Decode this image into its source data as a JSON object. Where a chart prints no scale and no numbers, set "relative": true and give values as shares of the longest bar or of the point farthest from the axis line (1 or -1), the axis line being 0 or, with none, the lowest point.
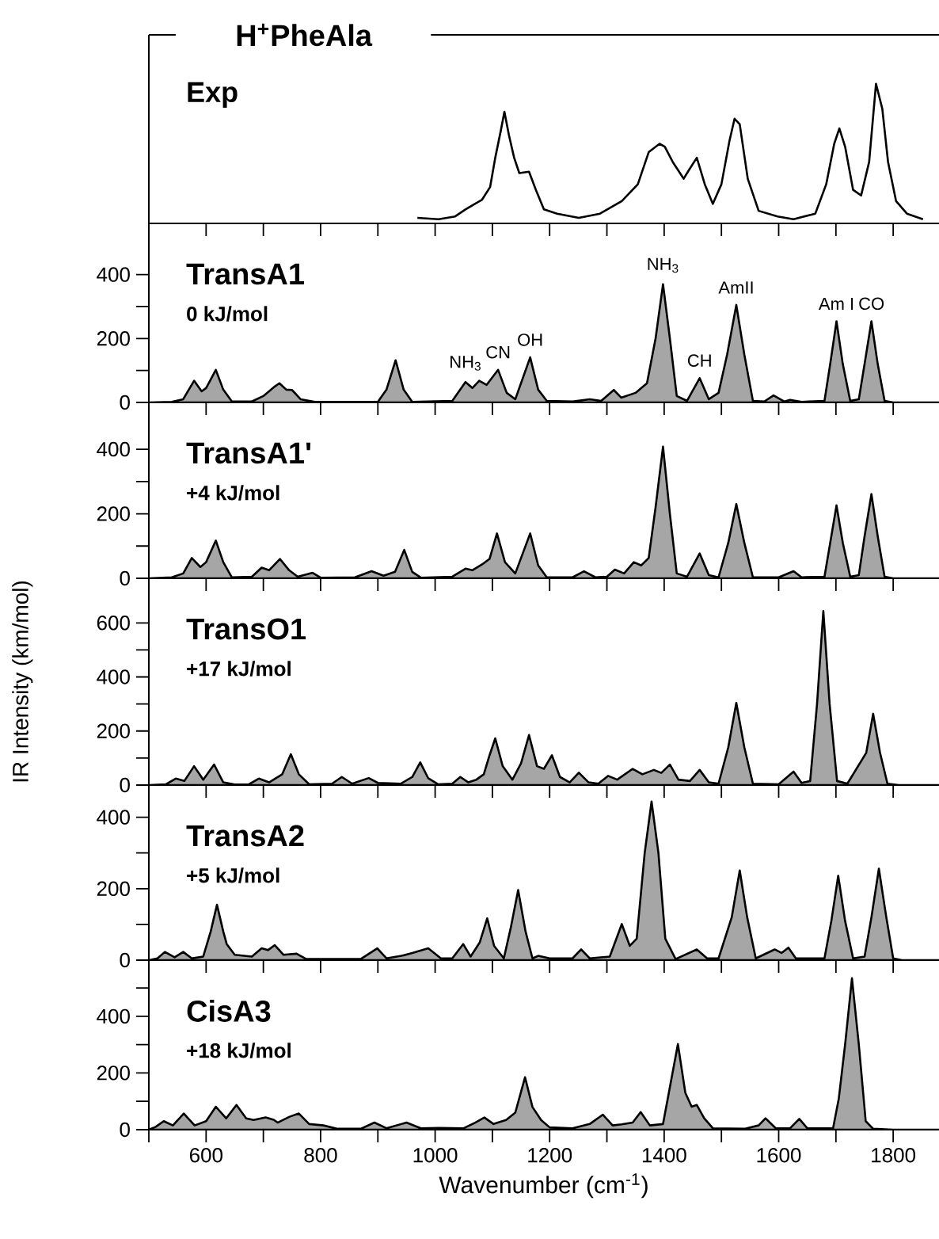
{
  "chart_data": [
    {
      "type": "line",
      "title": "H$^{+}$PheAla",
      "subtitle": "Exp",
      "relative": true,
      "color": "#000000",
      "xlim": [
        500,
        1880
      ],
      "tick_labels": false,
      "xticks": [
        {
          "value": 500,
          "label": null
        },
        {
          "value": 600,
          "label": null
        },
        {
          "value": 700,
          "label": null
        },
        {
          "value": 800,
          "label": null
        },
        {
          "value": 900,
          "label": null
        },
        {
          "value": 1000,
          "label": null
        },
        {
          "value": 1100,
          "label": null
        },
        {
          "value": 1200,
          "label": null
        },
        {
          "value": 1300,
          "label": null
        },
        {
          "value": 1400,
          "label": null
        },
        {
          "value": 1500,
          "label": null
        },
        {
          "value": 1600,
          "label": null
        },
        {
          "value": 1700,
          "label": null
        },
        {
          "value": 1800,
          "label": null
        }
      ],
      "x": [
        969,
        1006,
        1035,
        1053,
        1082,
        1096,
        1105,
        1115,
        1121,
        1129,
        1138,
        1147,
        1164,
        1176,
        1190,
        1213,
        1251,
        1288,
        1326,
        1354,
        1373,
        1392,
        1401,
        1415,
        1434,
        1443,
        1457,
        1471,
        1485,
        1500,
        1514,
        1523,
        1532,
        1546,
        1565,
        1598,
        1626,
        1664,
        1683,
        1697,
        1706,
        1716,
        1730,
        1744,
        1758,
        1770,
        1781,
        1791,
        1805,
        1824,
        1852
      ],
      "values": [
        0.04,
        0.03,
        0.05,
        0.1,
        0.17,
        0.26,
        0.47,
        0.67,
        0.8,
        0.63,
        0.47,
        0.36,
        0.37,
        0.24,
        0.1,
        0.07,
        0.04,
        0.07,
        0.16,
        0.28,
        0.51,
        0.57,
        0.55,
        0.44,
        0.32,
        0.38,
        0.47,
        0.28,
        0.14,
        0.28,
        0.59,
        0.75,
        0.71,
        0.32,
        0.09,
        0.05,
        0.03,
        0.07,
        0.28,
        0.57,
        0.68,
        0.55,
        0.24,
        0.2,
        0.44,
        1,
        0.82,
        0.44,
        0.16,
        0.07,
        0.03
      ]
    },
    {
      "type": "area",
      "title": "TransA1",
      "subtitle": "0 kJ/mol",
      "color": "#000000",
      "xlim": [
        500,
        1880
      ],
      "ylim": [
        0,
        560
      ],
      "tick_labels": "y",
      "xticks": [
        {
          "value": 500,
          "label": null
        },
        600,
        {
          "value": 700,
          "label": null
        },
        800,
        {
          "value": 900,
          "label": null
        },
        1000,
        {
          "value": 1100,
          "label": null
        },
        1200,
        {
          "value": 1300,
          "label": null
        },
        1400,
        {
          "value": 1500,
          "label": null
        },
        1600,
        {
          "value": 1700,
          "label": null
        },
        1800
      ],
      "yticks": [
        0,
        {
          "value": 100,
          "label": null
        },
        200,
        {
          "value": 300,
          "label": null
        },
        400
      ],
      "annotations": [
        {
          "text": "NH$_{3}$",
          "x": 1053,
          "y": 64
        },
        {
          "text": "CN",
          "x": 1110,
          "y": 102
        },
        {
          "text": "OH",
          "x": 1166,
          "y": 141
        },
        {
          "text": "NH$_{3}$",
          "x": 1398,
          "y": 370
        },
        {
          "text": "CH",
          "x": 1462,
          "y": 76
        },
        {
          "text": "AmII",
          "x": 1526,
          "y": 305
        },
        {
          "text": "Am I",
          "x": 1701,
          "y": 254
        },
        {
          "text": "CO",
          "x": 1762,
          "y": 254
        }
      ],
      "x": [
        500,
        540,
        560,
        579,
        592,
        600,
        617,
        630,
        645,
        680,
        700,
        720,
        728,
        740,
        750,
        765,
        790,
        900,
        915,
        931,
        945,
        960,
        1030,
        1053,
        1065,
        1077,
        1090,
        1110,
        1125,
        1140,
        1166,
        1180,
        1195,
        1240,
        1270,
        1290,
        1312,
        1325,
        1350,
        1370,
        1385,
        1398,
        1410,
        1422,
        1440,
        1462,
        1478,
        1495,
        1510,
        1526,
        1540,
        1555,
        1575,
        1591,
        1610,
        1620,
        1640,
        1680,
        1690,
        1701,
        1712,
        1725,
        1740,
        1750,
        1762,
        1773,
        1785,
        1800,
        1880
      ],
      "values": [
        0,
        2,
        10,
        68,
        35,
        45,
        102,
        40,
        3,
        3,
        20,
        50,
        60,
        40,
        39,
        10,
        2,
        2,
        40,
        132,
        40,
        2,
        5,
        64,
        45,
        68,
        55,
        102,
        30,
        10,
        141,
        40,
        5,
        3,
        10,
        5,
        39,
        15,
        30,
        60,
        200,
        370,
        200,
        20,
        5,
        76,
        10,
        30,
        150,
        305,
        150,
        5,
        3,
        22,
        3,
        8,
        2,
        5,
        120,
        254,
        120,
        5,
        10,
        120,
        254,
        120,
        5,
        0,
        0
      ]
    },
    {
      "type": "area",
      "title": "TransA1'",
      "subtitle": "+4 kJ/mol",
      "color": "#000000",
      "xlim": [
        500,
        1880
      ],
      "ylim": [
        0,
        545
      ],
      "tick_labels": "y",
      "xticks": [
        {
          "value": 500,
          "label": null
        },
        600,
        {
          "value": 700,
          "label": null
        },
        800,
        {
          "value": 900,
          "label": null
        },
        1000,
        {
          "value": 1100,
          "label": null
        },
        1200,
        {
          "value": 1300,
          "label": null
        },
        1400,
        {
          "value": 1500,
          "label": null
        },
        1600,
        {
          "value": 1700,
          "label": null
        },
        1800
      ],
      "yticks": [
        0,
        {
          "value": 100,
          "label": null
        },
        200,
        {
          "value": 300,
          "label": null
        },
        400
      ],
      "x": [
        500,
        540,
        560,
        575,
        590,
        600,
        617,
        630,
        645,
        680,
        697,
        710,
        729,
        745,
        760,
        786,
        800,
        860,
        889,
        910,
        930,
        946,
        960,
        975,
        1030,
        1053,
        1065,
        1082,
        1095,
        1108,
        1122,
        1140,
        1166,
        1180,
        1195,
        1240,
        1260,
        1280,
        1300,
        1314,
        1330,
        1347,
        1360,
        1373,
        1385,
        1398,
        1410,
        1422,
        1440,
        1462,
        1478,
        1495,
        1512,
        1526,
        1540,
        1555,
        1600,
        1626,
        1640,
        1680,
        1690,
        1701,
        1712,
        1725,
        1740,
        1750,
        1762,
        1773,
        1785,
        1800,
        1880
      ],
      "values": [
        0,
        3,
        15,
        63,
        35,
        50,
        117,
        50,
        3,
        5,
        33,
        25,
        60,
        25,
        5,
        17,
        2,
        3,
        22,
        8,
        20,
        88,
        20,
        2,
        5,
        30,
        25,
        43,
        60,
        139,
        50,
        15,
        139,
        40,
        3,
        3,
        22,
        3,
        5,
        27,
        15,
        50,
        40,
        63,
        220,
        408,
        200,
        15,
        5,
        77,
        10,
        3,
        110,
        230,
        110,
        3,
        3,
        22,
        3,
        5,
        110,
        226,
        110,
        5,
        10,
        130,
        261,
        130,
        5,
        0,
        0
      ]
    },
    {
      "type": "area",
      "title": "TransO1",
      "subtitle": "+17 kJ/mol",
      "ylabel": "IR Intensity (km/mol)",
      "color": "#000000",
      "xlim": [
        500,
        1880
      ],
      "ylim": [
        0,
        765
      ],
      "tick_labels": "y",
      "xticks": [
        {
          "value": 500,
          "label": null
        },
        600,
        {
          "value": 700,
          "label": null
        },
        800,
        {
          "value": 900,
          "label": null
        },
        1000,
        {
          "value": 1100,
          "label": null
        },
        1200,
        {
          "value": 1300,
          "label": null
        },
        1400,
        {
          "value": 1500,
          "label": null
        },
        1600,
        {
          "value": 1700,
          "label": null
        },
        1800
      ],
      "yticks": [
        0,
        {
          "value": 100,
          "label": null
        },
        200,
        {
          "value": 300,
          "label": null
        },
        400,
        {
          "value": 500,
          "label": null
        },
        600
      ],
      "x": [
        500,
        530,
        547,
        562,
        579,
        595,
        614,
        630,
        650,
        675,
        692,
        710,
        733,
        748,
        762,
        780,
        820,
        837,
        855,
        884,
        900,
        940,
        960,
        974,
        988,
        1005,
        1030,
        1044,
        1058,
        1072,
        1085,
        1095,
        1105,
        1118,
        1135,
        1150,
        1164,
        1178,
        1190,
        1204,
        1218,
        1235,
        1251,
        1268,
        1285,
        1302,
        1318,
        1345,
        1362,
        1382,
        1395,
        1410,
        1425,
        1445,
        1462,
        1478,
        1495,
        1512,
        1526,
        1540,
        1555,
        1600,
        1626,
        1640,
        1655,
        1667,
        1678,
        1689,
        1702,
        1720,
        1753,
        1765,
        1777,
        1790,
        1810,
        1880
      ],
      "values": [
        0,
        3,
        24,
        15,
        70,
        20,
        76,
        10,
        2,
        3,
        24,
        10,
        40,
        114,
        40,
        3,
        5,
        30,
        5,
        26,
        8,
        5,
        30,
        84,
        25,
        3,
        5,
        30,
        10,
        20,
        40,
        110,
        173,
        70,
        20,
        80,
        185,
        70,
        60,
        110,
        30,
        10,
        46,
        10,
        5,
        34,
        20,
        60,
        40,
        56,
        45,
        76,
        20,
        15,
        56,
        10,
        5,
        140,
        304,
        140,
        5,
        3,
        50,
        8,
        15,
        300,
        644,
        300,
        15,
        5,
        120,
        264,
        120,
        5,
        0,
        0
      ]
    },
    {
      "type": "area",
      "title": "TransA2",
      "subtitle": "+5 kJ/mol",
      "color": "#000000",
      "xlim": [
        500,
        1880
      ],
      "ylim": [
        0,
        490
      ],
      "tick_labels": "y",
      "xticks": [
        {
          "value": 500,
          "label": null
        },
        600,
        {
          "value": 700,
          "label": null
        },
        800,
        {
          "value": 900,
          "label": null
        },
        1000,
        {
          "value": 1100,
          "label": null
        },
        1200,
        {
          "value": 1300,
          "label": null
        },
        1400,
        {
          "value": 1500,
          "label": null
        },
        1600,
        {
          "value": 1700,
          "label": null
        },
        1800
      ],
      "yticks": [
        0,
        {
          "value": 100,
          "label": null
        },
        200,
        {
          "value": 300,
          "label": null
        },
        400
      ],
      "x": [
        500,
        515,
        528,
        545,
        560,
        575,
        595,
        608,
        619,
        630,
        636,
        650,
        680,
        697,
        708,
        720,
        735,
        758,
        775,
        870,
        899,
        915,
        941,
        960,
        988,
        1010,
        1030,
        1049,
        1062,
        1078,
        1091,
        1103,
        1120,
        1132,
        1145,
        1158,
        1170,
        1180,
        1200,
        1240,
        1255,
        1270,
        1305,
        1326,
        1340,
        1352,
        1366,
        1378,
        1390,
        1402,
        1420,
        1457,
        1475,
        1495,
        1518,
        1532,
        1545,
        1560,
        1593,
        1605,
        1617,
        1630,
        1680,
        1692,
        1704,
        1716,
        1730,
        1750,
        1762,
        1775,
        1788,
        1800,
        1815,
        1880
      ],
      "values": [
        0,
        5,
        23,
        8,
        23,
        5,
        10,
        80,
        155,
        80,
        45,
        15,
        10,
        33,
        28,
        42,
        15,
        18,
        3,
        3,
        33,
        5,
        12,
        20,
        33,
        5,
        5,
        45,
        10,
        50,
        117,
        40,
        5,
        90,
        196,
        80,
        5,
        12,
        5,
        5,
        30,
        5,
        10,
        101,
        40,
        60,
        300,
        444,
        300,
        60,
        3,
        30,
        5,
        5,
        120,
        251,
        120,
        5,
        30,
        20,
        35,
        5,
        5,
        110,
        236,
        110,
        5,
        10,
        120,
        256,
        120,
        5,
        0,
        0
      ]
    },
    {
      "type": "area",
      "title": "CisA3",
      "subtitle": "+18 kJ/mol",
      "xlabel": "Wavenumber (cm$^{-1}$)",
      "color": "#000000",
      "xlim": [
        500,
        1880
      ],
      "ylim": [
        0,
        598
      ],
      "xticks": [
        {
          "value": 500,
          "label": null
        },
        600,
        {
          "value": 700,
          "label": null
        },
        800,
        {
          "value": 900,
          "label": null
        },
        1000,
        {
          "value": 1100,
          "label": null
        },
        1200,
        {
          "value": 1300,
          "label": null
        },
        1400,
        {
          "value": 1500,
          "label": null
        },
        1600,
        {
          "value": 1700,
          "label": null
        },
        1800
      ],
      "yticks": [
        0,
        {
          "value": 100,
          "label": null
        },
        200,
        {
          "value": 300,
          "label": null
        },
        400,
        {
          "value": 500,
          "label": null
        }
      ],
      "x": [
        500,
        512,
        526,
        542,
        561,
        580,
        600,
        617,
        635,
        653,
        670,
        683,
        704,
        718,
        725,
        745,
        762,
        780,
        805,
        830,
        870,
        894,
        915,
        950,
        975,
        1006,
        1050,
        1070,
        1086,
        1102,
        1124,
        1140,
        1157,
        1170,
        1185,
        1200,
        1240,
        1270,
        1293,
        1310,
        1326,
        1345,
        1359,
        1375,
        1398,
        1410,
        1424,
        1437,
        1448,
        1457,
        1470,
        1485,
        1540,
        1565,
        1577,
        1595,
        1620,
        1636,
        1650,
        1695,
        1705,
        1716,
        1728,
        1740,
        1752,
        1765,
        1800,
        1880
      ],
      "values": [
        0,
        10,
        30,
        15,
        57,
        15,
        30,
        81,
        40,
        87,
        40,
        34,
        43,
        35,
        25,
        45,
        57,
        20,
        15,
        3,
        3,
        25,
        5,
        25,
        5,
        6,
        5,
        25,
        43,
        20,
        34,
        60,
        185,
        80,
        34,
        8,
        5,
        20,
        53,
        15,
        19,
        25,
        62,
        15,
        20,
        150,
        302,
        130,
        81,
        87,
        40,
        5,
        3,
        15,
        40,
        5,
        5,
        38,
        5,
        5,
        110,
        300,
        534,
        300,
        30,
        3,
        0,
        0
      ]
    }
  ]
}
